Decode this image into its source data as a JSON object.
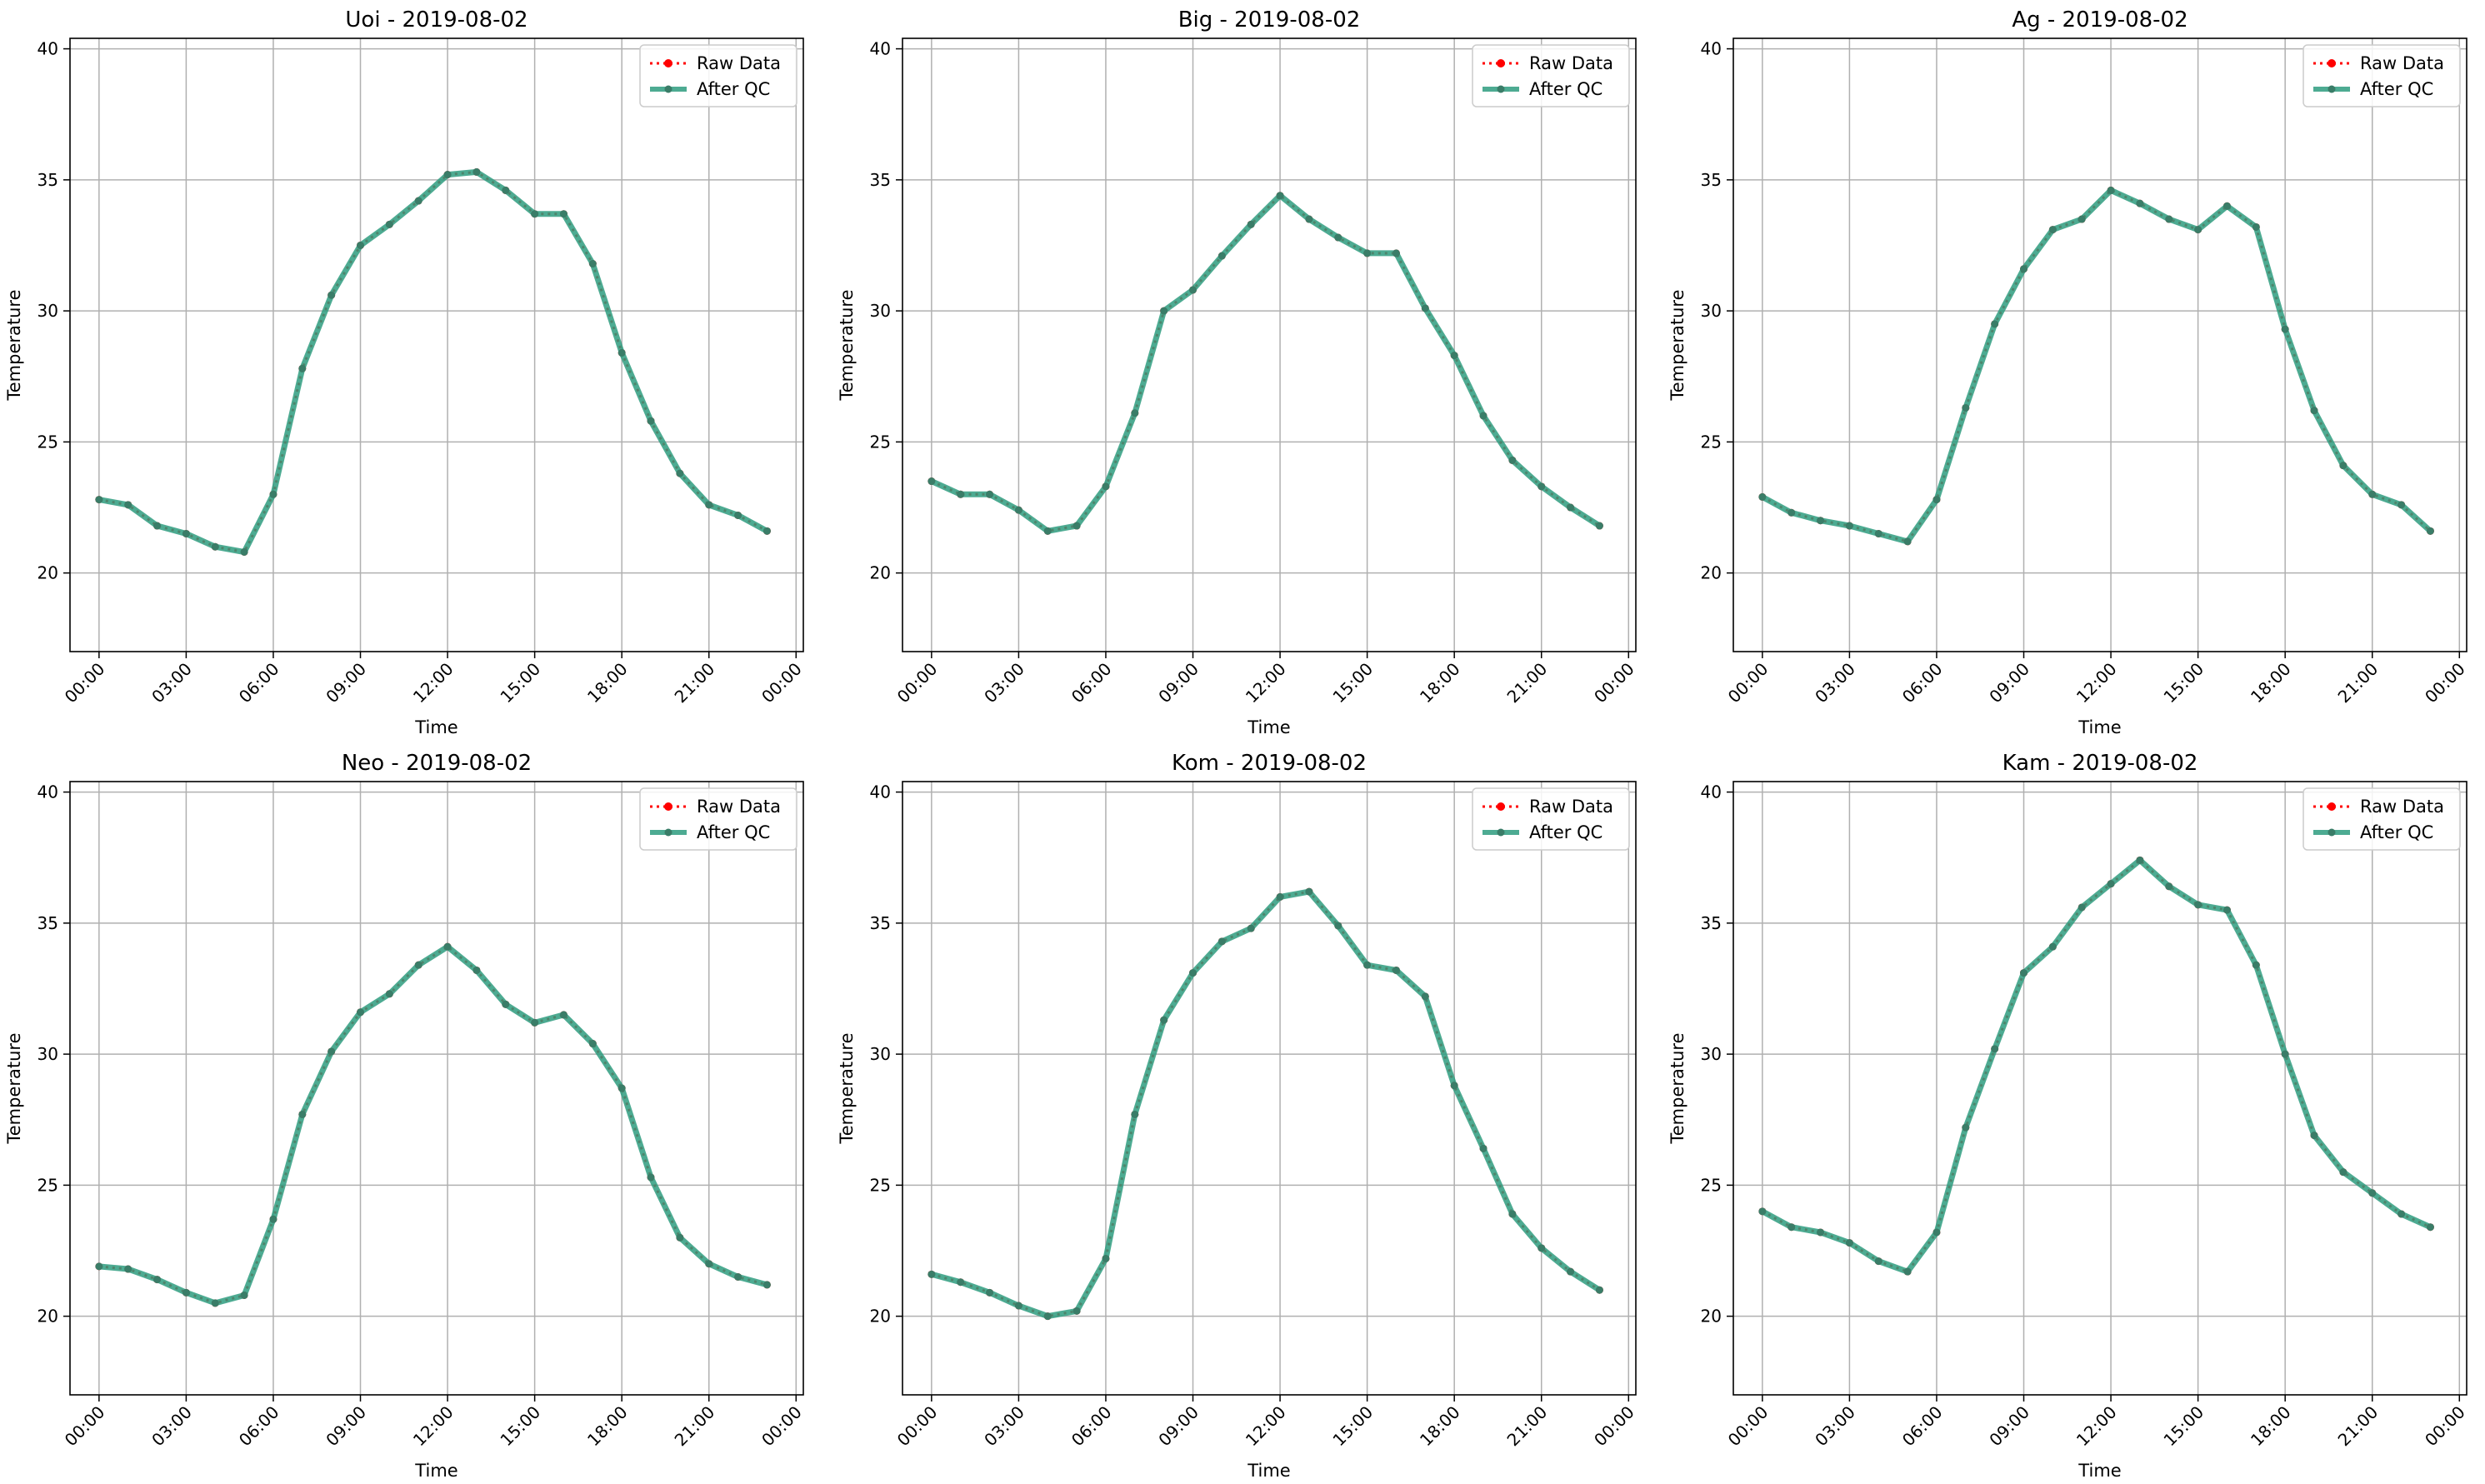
{
  "figure": {
    "background": "#ffffff"
  },
  "chart_data": [
    {
      "type": "line",
      "title": "Uoi - 2019-08-02",
      "xlabel": "Time",
      "ylabel": "Temperature",
      "xlim": [
        "2019-08-01 23:00",
        "2019-08-03 00:15"
      ],
      "ylim": [
        17,
        40.4
      ],
      "xticks": [
        "00:00",
        "03:00",
        "06:00",
        "09:00",
        "12:00",
        "15:00",
        "18:00",
        "21:00",
        "00:00"
      ],
      "yticks": [
        20,
        25,
        30,
        35,
        40
      ],
      "grid": true,
      "legend_position": "top-right",
      "x": [
        "00:00",
        "01:00",
        "02:00",
        "03:00",
        "04:00",
        "05:00",
        "06:00",
        "07:00",
        "08:00",
        "09:00",
        "10:00",
        "11:00",
        "12:00",
        "13:00",
        "14:00",
        "15:00",
        "16:00",
        "17:00",
        "18:00",
        "19:00",
        "20:00",
        "21:00",
        "22:00",
        "23:00"
      ],
      "series": [
        {
          "name": "Raw Data",
          "color": "#ff0000",
          "style": "dotted-marker",
          "values": [
            22.8,
            22.6,
            21.8,
            21.5,
            21.0,
            20.8,
            23.0,
            27.8,
            30.6,
            32.5,
            33.3,
            34.2,
            35.2,
            35.3,
            34.6,
            33.7,
            33.7,
            31.8,
            28.4,
            25.8,
            23.8,
            22.6,
            22.2,
            21.6
          ]
        },
        {
          "name": "After QC",
          "color": "#2e9c7f",
          "style": "solid-marker",
          "values": [
            22.8,
            22.6,
            21.8,
            21.5,
            21.0,
            20.8,
            23.0,
            27.8,
            30.6,
            32.5,
            33.3,
            34.2,
            35.2,
            35.3,
            34.6,
            33.7,
            33.7,
            31.8,
            28.4,
            25.8,
            23.8,
            22.6,
            22.2,
            21.6
          ]
        }
      ]
    },
    {
      "type": "line",
      "title": "Big - 2019-08-02",
      "xlabel": "Time",
      "ylabel": "Temperature",
      "xlim": [
        "2019-08-01 23:00",
        "2019-08-03 00:15"
      ],
      "ylim": [
        17,
        40.4
      ],
      "xticks": [
        "00:00",
        "03:00",
        "06:00",
        "09:00",
        "12:00",
        "15:00",
        "18:00",
        "21:00",
        "00:00"
      ],
      "yticks": [
        20,
        25,
        30,
        35,
        40
      ],
      "grid": true,
      "legend_position": "top-right",
      "x": [
        "00:00",
        "01:00",
        "02:00",
        "03:00",
        "04:00",
        "05:00",
        "06:00",
        "07:00",
        "08:00",
        "09:00",
        "10:00",
        "11:00",
        "12:00",
        "13:00",
        "14:00",
        "15:00",
        "16:00",
        "17:00",
        "18:00",
        "19:00",
        "20:00",
        "21:00",
        "22:00",
        "23:00"
      ],
      "series": [
        {
          "name": "Raw Data",
          "color": "#ff0000",
          "style": "dotted-marker",
          "values": [
            23.5,
            23.0,
            23.0,
            22.4,
            21.6,
            21.8,
            23.3,
            26.1,
            30.0,
            30.8,
            32.1,
            33.3,
            34.4,
            33.5,
            32.8,
            32.2,
            32.2,
            30.1,
            28.3,
            26.0,
            24.3,
            23.3,
            22.5,
            21.8
          ]
        },
        {
          "name": "After QC",
          "color": "#2e9c7f",
          "style": "solid-marker",
          "values": [
            23.5,
            23.0,
            23.0,
            22.4,
            21.6,
            21.8,
            23.3,
            26.1,
            30.0,
            30.8,
            32.1,
            33.3,
            34.4,
            33.5,
            32.8,
            32.2,
            32.2,
            30.1,
            28.3,
            26.0,
            24.3,
            23.3,
            22.5,
            21.8
          ]
        }
      ]
    },
    {
      "type": "line",
      "title": "Ag - 2019-08-02",
      "xlabel": "Time",
      "ylabel": "Temperature",
      "xlim": [
        "2019-08-01 23:00",
        "2019-08-03 00:15"
      ],
      "ylim": [
        17,
        40.4
      ],
      "xticks": [
        "00:00",
        "03:00",
        "06:00",
        "09:00",
        "12:00",
        "15:00",
        "18:00",
        "21:00",
        "00:00"
      ],
      "yticks": [
        20,
        25,
        30,
        35,
        40
      ],
      "grid": true,
      "legend_position": "top-right",
      "x": [
        "00:00",
        "01:00",
        "02:00",
        "03:00",
        "04:00",
        "05:00",
        "06:00",
        "07:00",
        "08:00",
        "09:00",
        "10:00",
        "11:00",
        "12:00",
        "13:00",
        "14:00",
        "15:00",
        "16:00",
        "17:00",
        "18:00",
        "19:00",
        "20:00",
        "21:00",
        "22:00",
        "23:00"
      ],
      "series": [
        {
          "name": "Raw Data",
          "color": "#ff0000",
          "style": "dotted-marker",
          "values": [
            22.9,
            22.3,
            22.0,
            21.8,
            21.5,
            21.2,
            22.8,
            26.3,
            29.5,
            31.6,
            33.1,
            33.5,
            34.6,
            34.1,
            33.5,
            33.1,
            34.0,
            33.2,
            29.3,
            26.2,
            24.1,
            23.0,
            22.6,
            21.6
          ]
        },
        {
          "name": "After QC",
          "color": "#2e9c7f",
          "style": "solid-marker",
          "values": [
            22.9,
            22.3,
            22.0,
            21.8,
            21.5,
            21.2,
            22.8,
            26.3,
            29.5,
            31.6,
            33.1,
            33.5,
            34.6,
            34.1,
            33.5,
            33.1,
            34.0,
            33.2,
            29.3,
            26.2,
            24.1,
            23.0,
            22.6,
            21.6
          ]
        }
      ]
    },
    {
      "type": "line",
      "title": "Neo - 2019-08-02",
      "xlabel": "Time",
      "ylabel": "Temperature",
      "xlim": [
        "2019-08-01 23:00",
        "2019-08-03 00:15"
      ],
      "ylim": [
        17,
        40.4
      ],
      "xticks": [
        "00:00",
        "03:00",
        "06:00",
        "09:00",
        "12:00",
        "15:00",
        "18:00",
        "21:00",
        "00:00"
      ],
      "yticks": [
        20,
        25,
        30,
        35,
        40
      ],
      "grid": true,
      "legend_position": "top-right",
      "x": [
        "00:00",
        "01:00",
        "02:00",
        "03:00",
        "04:00",
        "05:00",
        "06:00",
        "07:00",
        "08:00",
        "09:00",
        "10:00",
        "11:00",
        "12:00",
        "13:00",
        "14:00",
        "15:00",
        "16:00",
        "17:00",
        "18:00",
        "19:00",
        "20:00",
        "21:00",
        "22:00",
        "23:00"
      ],
      "series": [
        {
          "name": "Raw Data",
          "color": "#ff0000",
          "style": "dotted-marker",
          "values": [
            21.9,
            21.8,
            21.4,
            20.9,
            20.5,
            20.8,
            23.7,
            27.7,
            30.1,
            31.6,
            32.3,
            33.4,
            34.1,
            33.2,
            31.9,
            31.2,
            31.5,
            30.4,
            28.7,
            25.3,
            23.0,
            22.0,
            21.5,
            21.2
          ]
        },
        {
          "name": "After QC",
          "color": "#2e9c7f",
          "style": "solid-marker",
          "values": [
            21.9,
            21.8,
            21.4,
            20.9,
            20.5,
            20.8,
            23.7,
            27.7,
            30.1,
            31.6,
            32.3,
            33.4,
            34.1,
            33.2,
            31.9,
            31.2,
            31.5,
            30.4,
            28.7,
            25.3,
            23.0,
            22.0,
            21.5,
            21.2
          ]
        }
      ]
    },
    {
      "type": "line",
      "title": "Kom - 2019-08-02",
      "xlabel": "Time",
      "ylabel": "Temperature",
      "xlim": [
        "2019-08-01 23:00",
        "2019-08-03 00:15"
      ],
      "ylim": [
        17,
        40.4
      ],
      "xticks": [
        "00:00",
        "03:00",
        "06:00",
        "09:00",
        "12:00",
        "15:00",
        "18:00",
        "21:00",
        "00:00"
      ],
      "yticks": [
        20,
        25,
        30,
        35,
        40
      ],
      "grid": true,
      "legend_position": "top-right",
      "x": [
        "00:00",
        "01:00",
        "02:00",
        "03:00",
        "04:00",
        "05:00",
        "06:00",
        "07:00",
        "08:00",
        "09:00",
        "10:00",
        "11:00",
        "12:00",
        "13:00",
        "14:00",
        "15:00",
        "16:00",
        "17:00",
        "18:00",
        "19:00",
        "20:00",
        "21:00",
        "22:00",
        "23:00"
      ],
      "series": [
        {
          "name": "Raw Data",
          "color": "#ff0000",
          "style": "dotted-marker",
          "values": [
            21.6,
            21.3,
            20.9,
            20.4,
            20.0,
            20.2,
            22.2,
            27.7,
            31.3,
            33.1,
            34.3,
            34.8,
            36.0,
            36.2,
            34.9,
            33.4,
            33.2,
            32.2,
            28.8,
            26.4,
            23.9,
            22.6,
            21.7,
            21.0
          ]
        },
        {
          "name": "After QC",
          "color": "#2e9c7f",
          "style": "solid-marker",
          "values": [
            21.6,
            21.3,
            20.9,
            20.4,
            20.0,
            20.2,
            22.2,
            27.7,
            31.3,
            33.1,
            34.3,
            34.8,
            36.0,
            36.2,
            34.9,
            33.4,
            33.2,
            32.2,
            28.8,
            26.4,
            23.9,
            22.6,
            21.7,
            21.0
          ]
        }
      ]
    },
    {
      "type": "line",
      "title": "Kam - 2019-08-02",
      "xlabel": "Time",
      "ylabel": "Temperature",
      "xlim": [
        "2019-08-01 23:00",
        "2019-08-03 00:15"
      ],
      "ylim": [
        17,
        40.4
      ],
      "xticks": [
        "00:00",
        "03:00",
        "06:00",
        "09:00",
        "12:00",
        "15:00",
        "18:00",
        "21:00",
        "00:00"
      ],
      "yticks": [
        20,
        25,
        30,
        35,
        40
      ],
      "grid": true,
      "legend_position": "top-right",
      "x": [
        "00:00",
        "01:00",
        "02:00",
        "03:00",
        "04:00",
        "05:00",
        "06:00",
        "07:00",
        "08:00",
        "09:00",
        "10:00",
        "11:00",
        "12:00",
        "13:00",
        "14:00",
        "15:00",
        "16:00",
        "17:00",
        "18:00",
        "19:00",
        "20:00",
        "21:00",
        "22:00",
        "23:00"
      ],
      "series": [
        {
          "name": "Raw Data",
          "color": "#ff0000",
          "style": "dotted-marker",
          "values": [
            24.0,
            23.4,
            23.2,
            22.8,
            22.1,
            21.7,
            23.2,
            27.2,
            30.2,
            33.1,
            34.1,
            35.6,
            36.5,
            37.4,
            36.4,
            35.7,
            35.5,
            33.4,
            30.0,
            26.9,
            25.5,
            24.7,
            23.9,
            23.4
          ]
        },
        {
          "name": "After QC",
          "color": "#2e9c7f",
          "style": "solid-marker",
          "values": [
            24.0,
            23.4,
            23.2,
            22.8,
            22.1,
            21.7,
            23.2,
            27.2,
            30.2,
            33.1,
            34.1,
            35.6,
            36.5,
            37.4,
            36.4,
            35.7,
            35.5,
            33.4,
            30.0,
            26.9,
            25.5,
            24.7,
            23.9,
            23.4
          ]
        }
      ]
    }
  ]
}
